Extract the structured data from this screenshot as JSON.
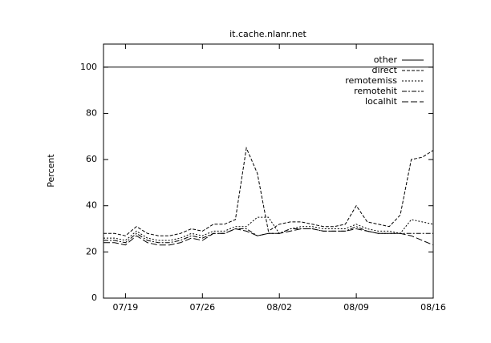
{
  "chart_data": {
    "type": "line",
    "title": "it.cache.nlanr.net",
    "y_label": "Percent",
    "categories": [
      null,
      null,
      "07/19",
      null,
      null,
      null,
      null,
      null,
      null,
      "07/26",
      null,
      null,
      null,
      null,
      null,
      null,
      "08/02",
      null,
      null,
      null,
      null,
      null,
      null,
      "08/09",
      null,
      null,
      null,
      null,
      null,
      null,
      "08/16"
    ],
    "ylim": [
      0,
      110
    ],
    "yticks": [
      0,
      20,
      40,
      60,
      80,
      100
    ],
    "legend": "top-right",
    "series": [
      {
        "name": "other",
        "color": "#000000",
        "dash": "none",
        "values": [
          100,
          100,
          100,
          100,
          100,
          100,
          100,
          100,
          100,
          100,
          100,
          100,
          100,
          100,
          100,
          100,
          100,
          100,
          100,
          100,
          100,
          100,
          100,
          100,
          100,
          100,
          100,
          100,
          100,
          100,
          100
        ]
      },
      {
        "name": "direct",
        "color": "#000000",
        "dash": "4 2",
        "values": [
          28,
          28,
          27,
          31,
          28,
          27,
          27,
          28,
          30,
          29,
          32,
          32,
          34,
          65,
          54,
          29,
          32,
          33,
          33,
          32,
          31,
          31,
          32,
          40,
          33,
          32,
          31,
          36,
          60,
          61,
          64
        ]
      },
      {
        "name": "remotemiss",
        "color": "#000000",
        "dash": "2 2",
        "values": [
          26,
          26,
          25,
          29,
          26,
          25,
          25,
          26,
          28,
          27,
          29,
          29,
          31,
          31,
          35,
          35,
          28,
          30,
          31,
          31,
          30,
          30,
          30,
          32,
          30,
          29,
          29,
          28,
          34,
          33,
          32
        ]
      },
      {
        "name": "remotehit",
        "color": "#000000",
        "dash": "6 2 2 2",
        "values": [
          25,
          25,
          24,
          28,
          25,
          24,
          24,
          25,
          27,
          26,
          28,
          28,
          30,
          30,
          27,
          28,
          28,
          30,
          30,
          30,
          29,
          29,
          29,
          31,
          29,
          28,
          28,
          28,
          28,
          28,
          28
        ]
      },
      {
        "name": "localhit",
        "color": "#000000",
        "dash": "8 3",
        "values": [
          24,
          24,
          23,
          27,
          24,
          23,
          23,
          24,
          26,
          25,
          28,
          28,
          30,
          29,
          27,
          28,
          28,
          29,
          30,
          30,
          29,
          29,
          29,
          30,
          29,
          28,
          28,
          28,
          27,
          25,
          23
        ]
      }
    ]
  }
}
